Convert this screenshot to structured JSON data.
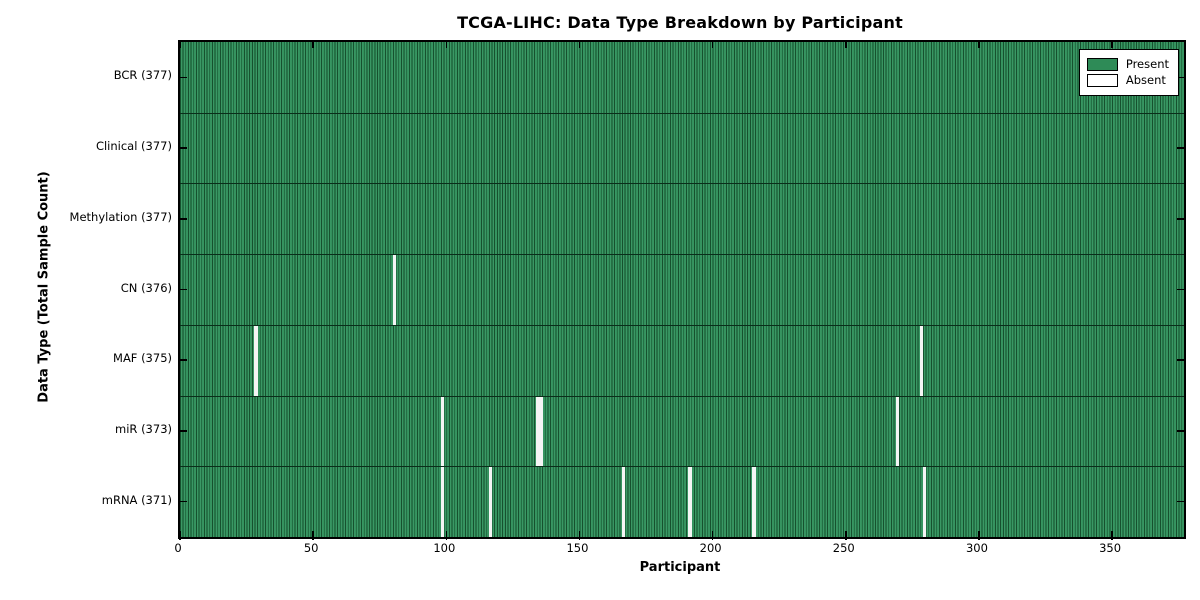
{
  "chart_data": {
    "type": "heatmap",
    "title": "TCGA-LIHC: Data Type Breakdown by Participant",
    "xlabel": "Participant",
    "ylabel": "Data Type (Total Sample Count)",
    "xlim": [
      0,
      377
    ],
    "total_participants": 377,
    "x_ticks": [
      0,
      50,
      100,
      150,
      200,
      250,
      300,
      350
    ],
    "grid": false,
    "colors": {
      "present_fill": "#2e8b57",
      "present_highlight": "#3f9d6a",
      "present_edge": "#16512e",
      "absent_fill": "#f5f5f5",
      "row_separator": "#0a2e1a",
      "axis": "#000000",
      "background": "#ffffff"
    },
    "legend": {
      "position": "upper right",
      "entries": [
        {
          "label": "Present",
          "color": "#2e8b57"
        },
        {
          "label": "Absent",
          "color": "#ffffff"
        }
      ]
    },
    "rows": [
      {
        "label": "BCR (377)",
        "data_type": "BCR",
        "present_count": 377,
        "absent_participants": []
      },
      {
        "label": "Clinical (377)",
        "data_type": "Clinical",
        "present_count": 377,
        "absent_participants": []
      },
      {
        "label": "Methylation (377)",
        "data_type": "Methylation",
        "present_count": 377,
        "absent_participants": []
      },
      {
        "label": "CN (376)",
        "data_type": "CN",
        "present_count": 376,
        "absent_participants": [
          80
        ]
      },
      {
        "label": "MAF (375)",
        "data_type": "MAF",
        "present_count": 375,
        "absent_participants": [
          28,
          278
        ]
      },
      {
        "label": "miR (373)",
        "data_type": "miR",
        "present_count": 373,
        "absent_participants": [
          98,
          134,
          135,
          269
        ]
      },
      {
        "label": "mRNA (371)",
        "data_type": "mRNA",
        "present_count": 371,
        "absent_participants": [
          98,
          116,
          166,
          191,
          215,
          279
        ]
      }
    ]
  }
}
